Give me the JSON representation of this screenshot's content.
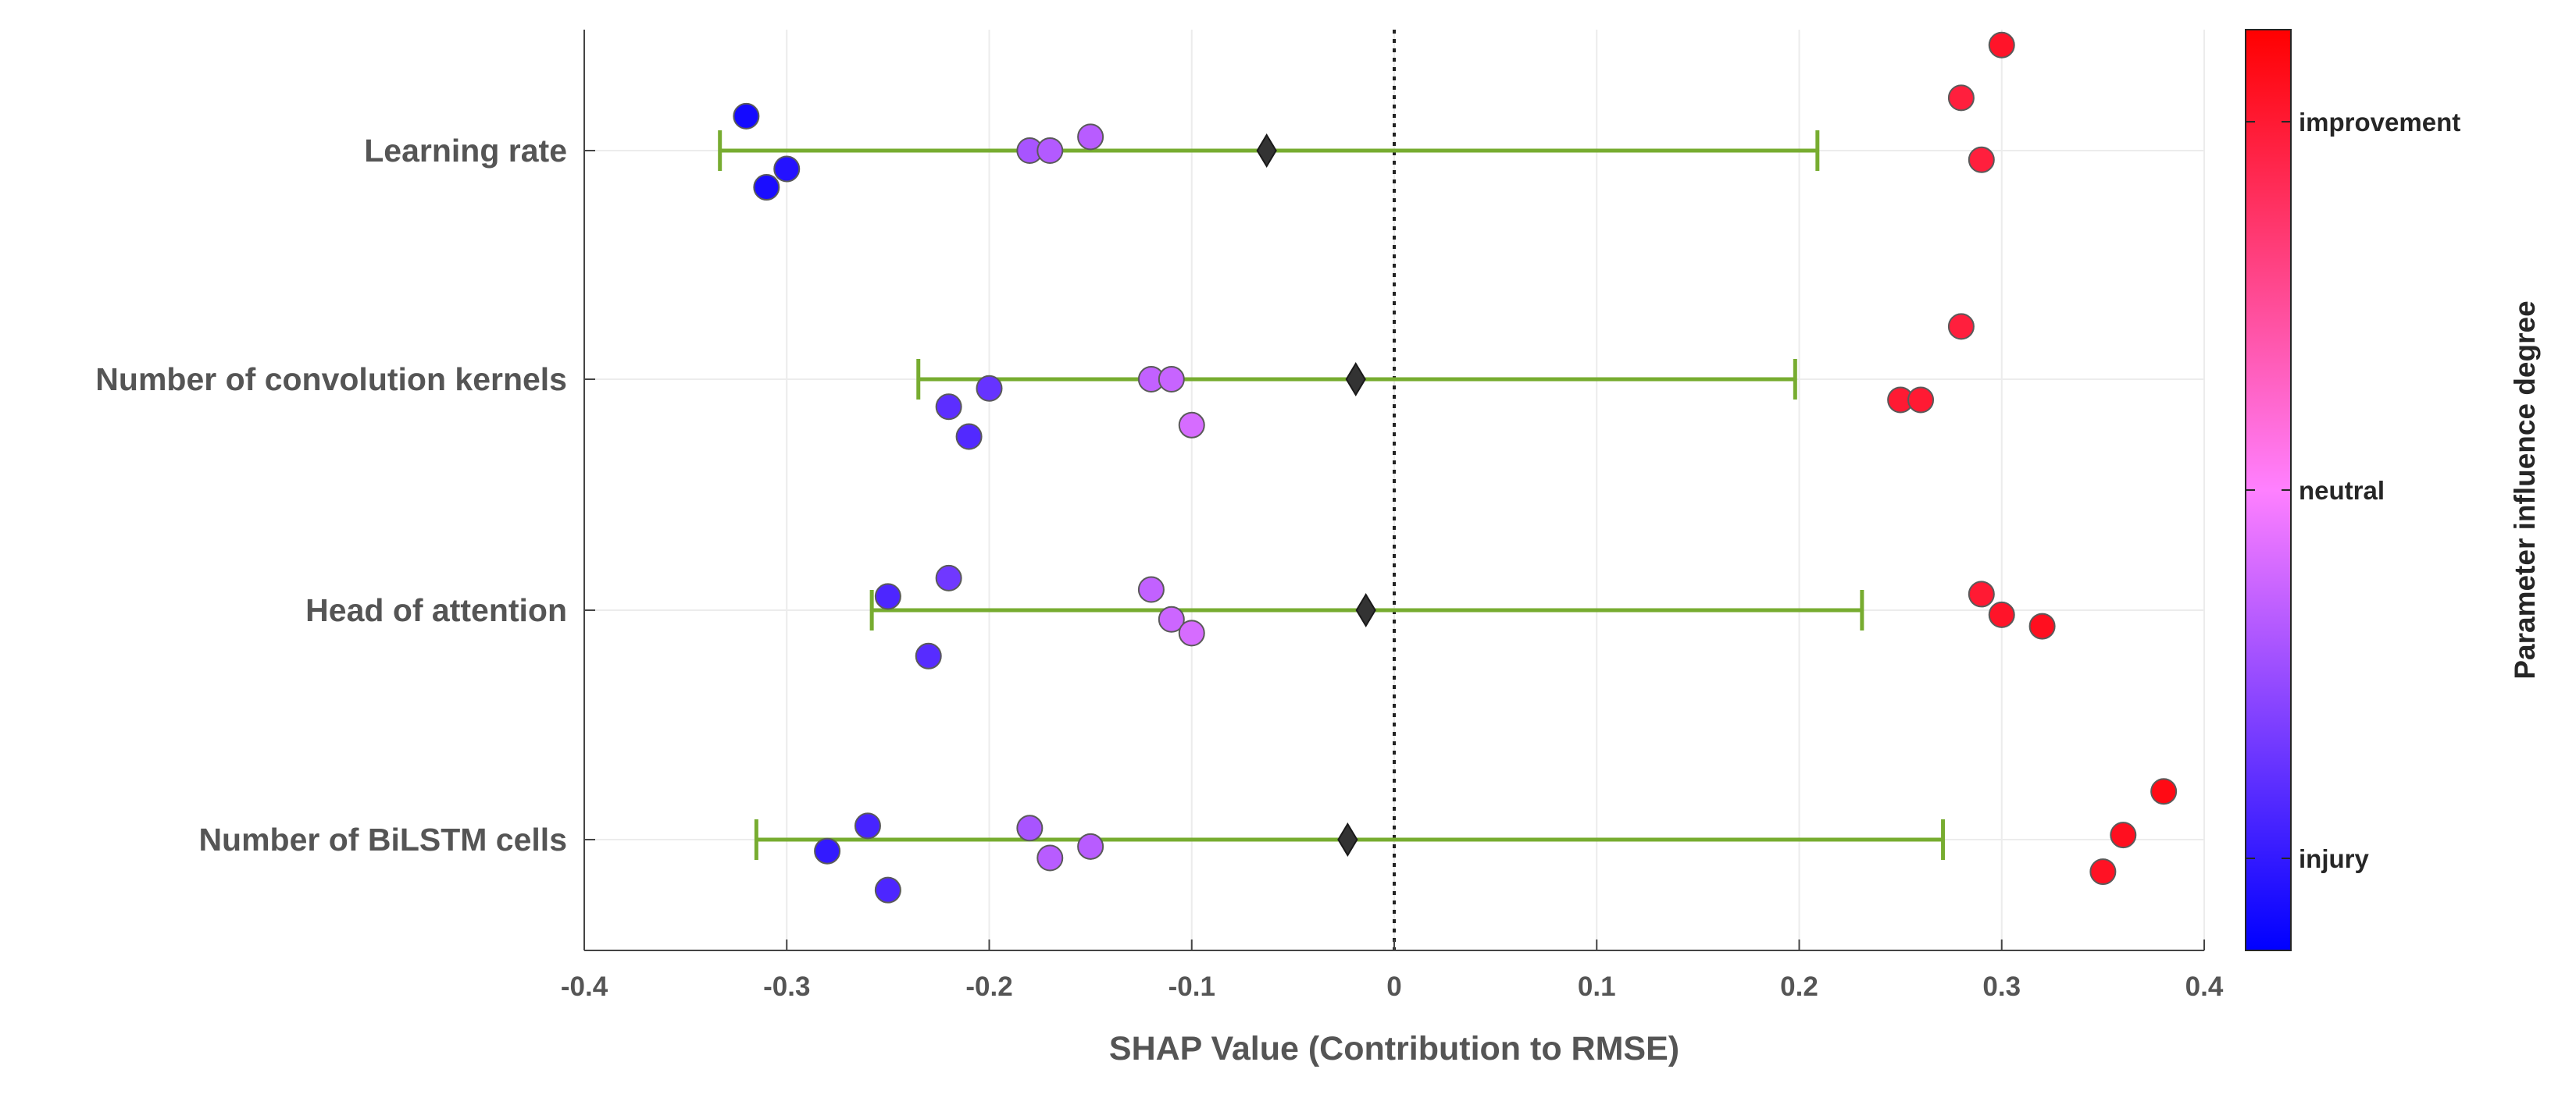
{
  "chart_data": {
    "type": "scatter",
    "xlabel": "SHAP Value (Contribution to RMSE)",
    "xlim": [
      -0.4,
      0.4
    ],
    "xticks": [
      -0.4,
      -0.3,
      -0.2,
      -0.1,
      0,
      0.1,
      0.2,
      0.3,
      0.4
    ],
    "xtick_labels": [
      "-0.4",
      "-0.3",
      "-0.2",
      "-0.1",
      "0",
      "0.1",
      "0.2",
      "0.3",
      "0.4"
    ],
    "grid": true,
    "zero_line": "dotted",
    "categories": [
      "Learning rate",
      "Number of convolution kernels",
      "Head of attention",
      "Number of BiLSTM cells"
    ],
    "points": [
      [
        {
          "x": 0.3,
          "dy": -0.46,
          "c": 0.92
        },
        {
          "x": 0.28,
          "dy": -0.23,
          "c": 0.88
        },
        {
          "x": -0.32,
          "dy": -0.15,
          "c": 0.04
        },
        {
          "x": -0.15,
          "dy": -0.06,
          "c": 0.36
        },
        {
          "x": -0.18,
          "dy": 0.0,
          "c": 0.33
        },
        {
          "x": -0.17,
          "dy": 0.0,
          "c": 0.35
        },
        {
          "x": 0.29,
          "dy": 0.04,
          "c": 0.88
        },
        {
          "x": -0.3,
          "dy": 0.08,
          "c": 0.07
        },
        {
          "x": -0.31,
          "dy": 0.16,
          "c": 0.05
        }
      ],
      [
        {
          "x": 0.28,
          "dy": -0.23,
          "c": 0.88
        },
        {
          "x": -0.12,
          "dy": 0.0,
          "c": 0.38
        },
        {
          "x": -0.11,
          "dy": 0.0,
          "c": 0.39
        },
        {
          "x": -0.2,
          "dy": 0.04,
          "c": 0.2
        },
        {
          "x": 0.25,
          "dy": 0.09,
          "c": 0.9
        },
        {
          "x": 0.26,
          "dy": 0.09,
          "c": 0.9
        },
        {
          "x": -0.22,
          "dy": 0.12,
          "c": 0.18
        },
        {
          "x": -0.1,
          "dy": 0.2,
          "c": 0.42
        },
        {
          "x": -0.21,
          "dy": 0.25,
          "c": 0.16
        }
      ],
      [
        {
          "x": -0.22,
          "dy": -0.14,
          "c": 0.22
        },
        {
          "x": -0.12,
          "dy": -0.09,
          "c": 0.38
        },
        {
          "x": 0.29,
          "dy": -0.07,
          "c": 0.9
        },
        {
          "x": -0.25,
          "dy": -0.06,
          "c": 0.15
        },
        {
          "x": 0.3,
          "dy": 0.02,
          "c": 0.92
        },
        {
          "x": -0.11,
          "dy": 0.04,
          "c": 0.4
        },
        {
          "x": 0.32,
          "dy": 0.07,
          "c": 0.94
        },
        {
          "x": -0.1,
          "dy": 0.1,
          "c": 0.42
        },
        {
          "x": -0.23,
          "dy": 0.2,
          "c": 0.17
        }
      ],
      [
        {
          "x": 0.38,
          "dy": -0.21,
          "c": 0.96
        },
        {
          "x": -0.26,
          "dy": -0.06,
          "c": 0.14
        },
        {
          "x": -0.18,
          "dy": -0.05,
          "c": 0.33
        },
        {
          "x": 0.36,
          "dy": -0.02,
          "c": 0.94
        },
        {
          "x": -0.15,
          "dy": 0.03,
          "c": 0.36
        },
        {
          "x": -0.28,
          "dy": 0.05,
          "c": 0.1
        },
        {
          "x": -0.17,
          "dy": 0.08,
          "c": 0.36
        },
        {
          "x": 0.35,
          "dy": 0.14,
          "c": 0.93
        },
        {
          "x": -0.25,
          "dy": 0.22,
          "c": 0.15
        }
      ]
    ],
    "means": [
      -0.063,
      -0.019,
      -0.014,
      -0.023
    ],
    "error_bars": [
      [
        -0.333,
        0.209
      ],
      [
        -0.235,
        0.198
      ],
      [
        -0.258,
        0.231
      ],
      [
        -0.315,
        0.271
      ]
    ],
    "colorbar": {
      "title": "Parameter influence degree",
      "ticks": [
        {
          "value": 0.1,
          "label": "injury"
        },
        {
          "value": 0.5,
          "label": "neutral"
        },
        {
          "value": 0.9,
          "label": "improvement"
        }
      ],
      "colors": [
        "#0000ff",
        "#ff80ff",
        "#ff0000"
      ]
    },
    "marker_edge_color": "#5a5a5a",
    "errorbar_color": "#77ac30",
    "mean_marker_color": "#333333"
  }
}
